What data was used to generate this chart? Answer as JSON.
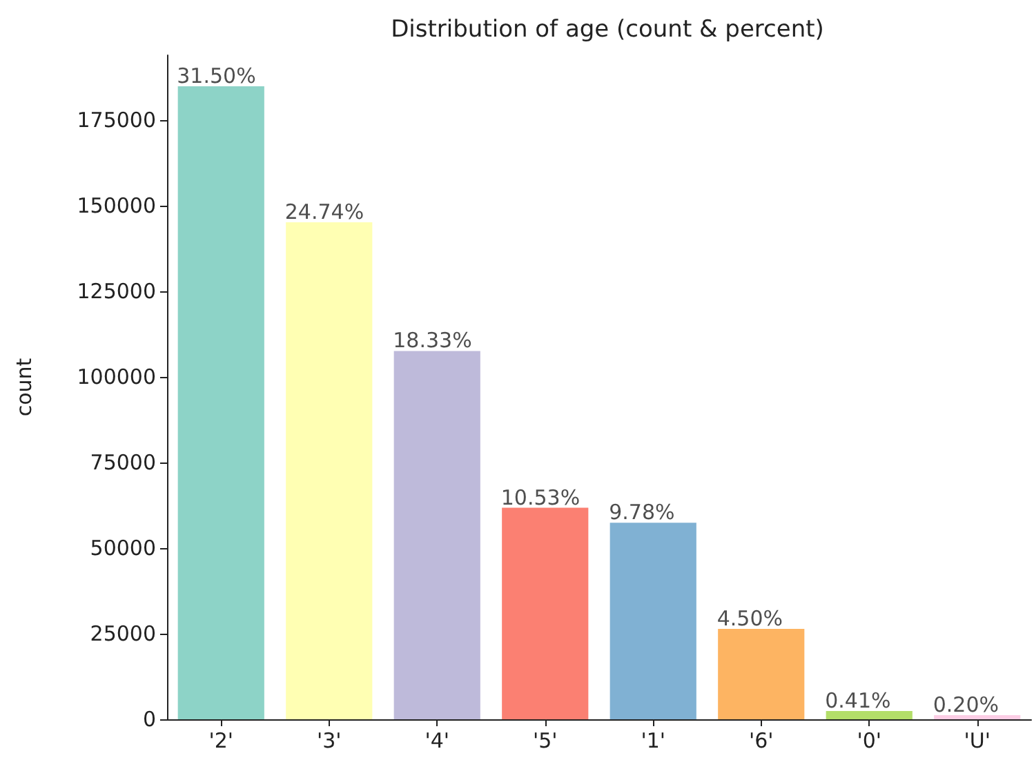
{
  "chart_data": {
    "type": "bar",
    "title": "Distribution of age (count & percent)",
    "ylabel": "count",
    "categories": [
      "'2'",
      "'3'",
      "'4'",
      "'5'",
      "'1'",
      "'6'",
      "'0'",
      "'U'"
    ],
    "values": [
      184900,
      145200,
      107600,
      61800,
      57400,
      26400,
      2400,
      1200
    ],
    "colors": [
      "#8dd3c7",
      "#ffffb3",
      "#bebada",
      "#fb8072",
      "#80b1d3",
      "#fdb462",
      "#b3de69",
      "#fccde5"
    ],
    "annotations": [
      {
        "text": "31.50%",
        "x": "'2'",
        "y": 184900
      },
      {
        "text": "24.74%",
        "x": "'3'",
        "y": 145200
      },
      {
        "text": "18.33%",
        "x": "'4'",
        "y": 107600
      },
      {
        "text": "10.53%",
        "x": "'5'",
        "y": 61800
      },
      {
        "text": "9.78%",
        "x": "'1'",
        "y": 57400
      },
      {
        "text": "4.50%",
        "x": "'6'",
        "y": 26400
      },
      {
        "text": "0.41%",
        "x": "'0'",
        "y": 2400
      },
      {
        "text": "0.20%",
        "x": "'U'",
        "y": 1200
      }
    ],
    "ylim": [
      0,
      194000
    ],
    "yticks": [
      0,
      25000,
      50000,
      75000,
      100000,
      125000,
      150000,
      175000
    ],
    "grid": false
  }
}
